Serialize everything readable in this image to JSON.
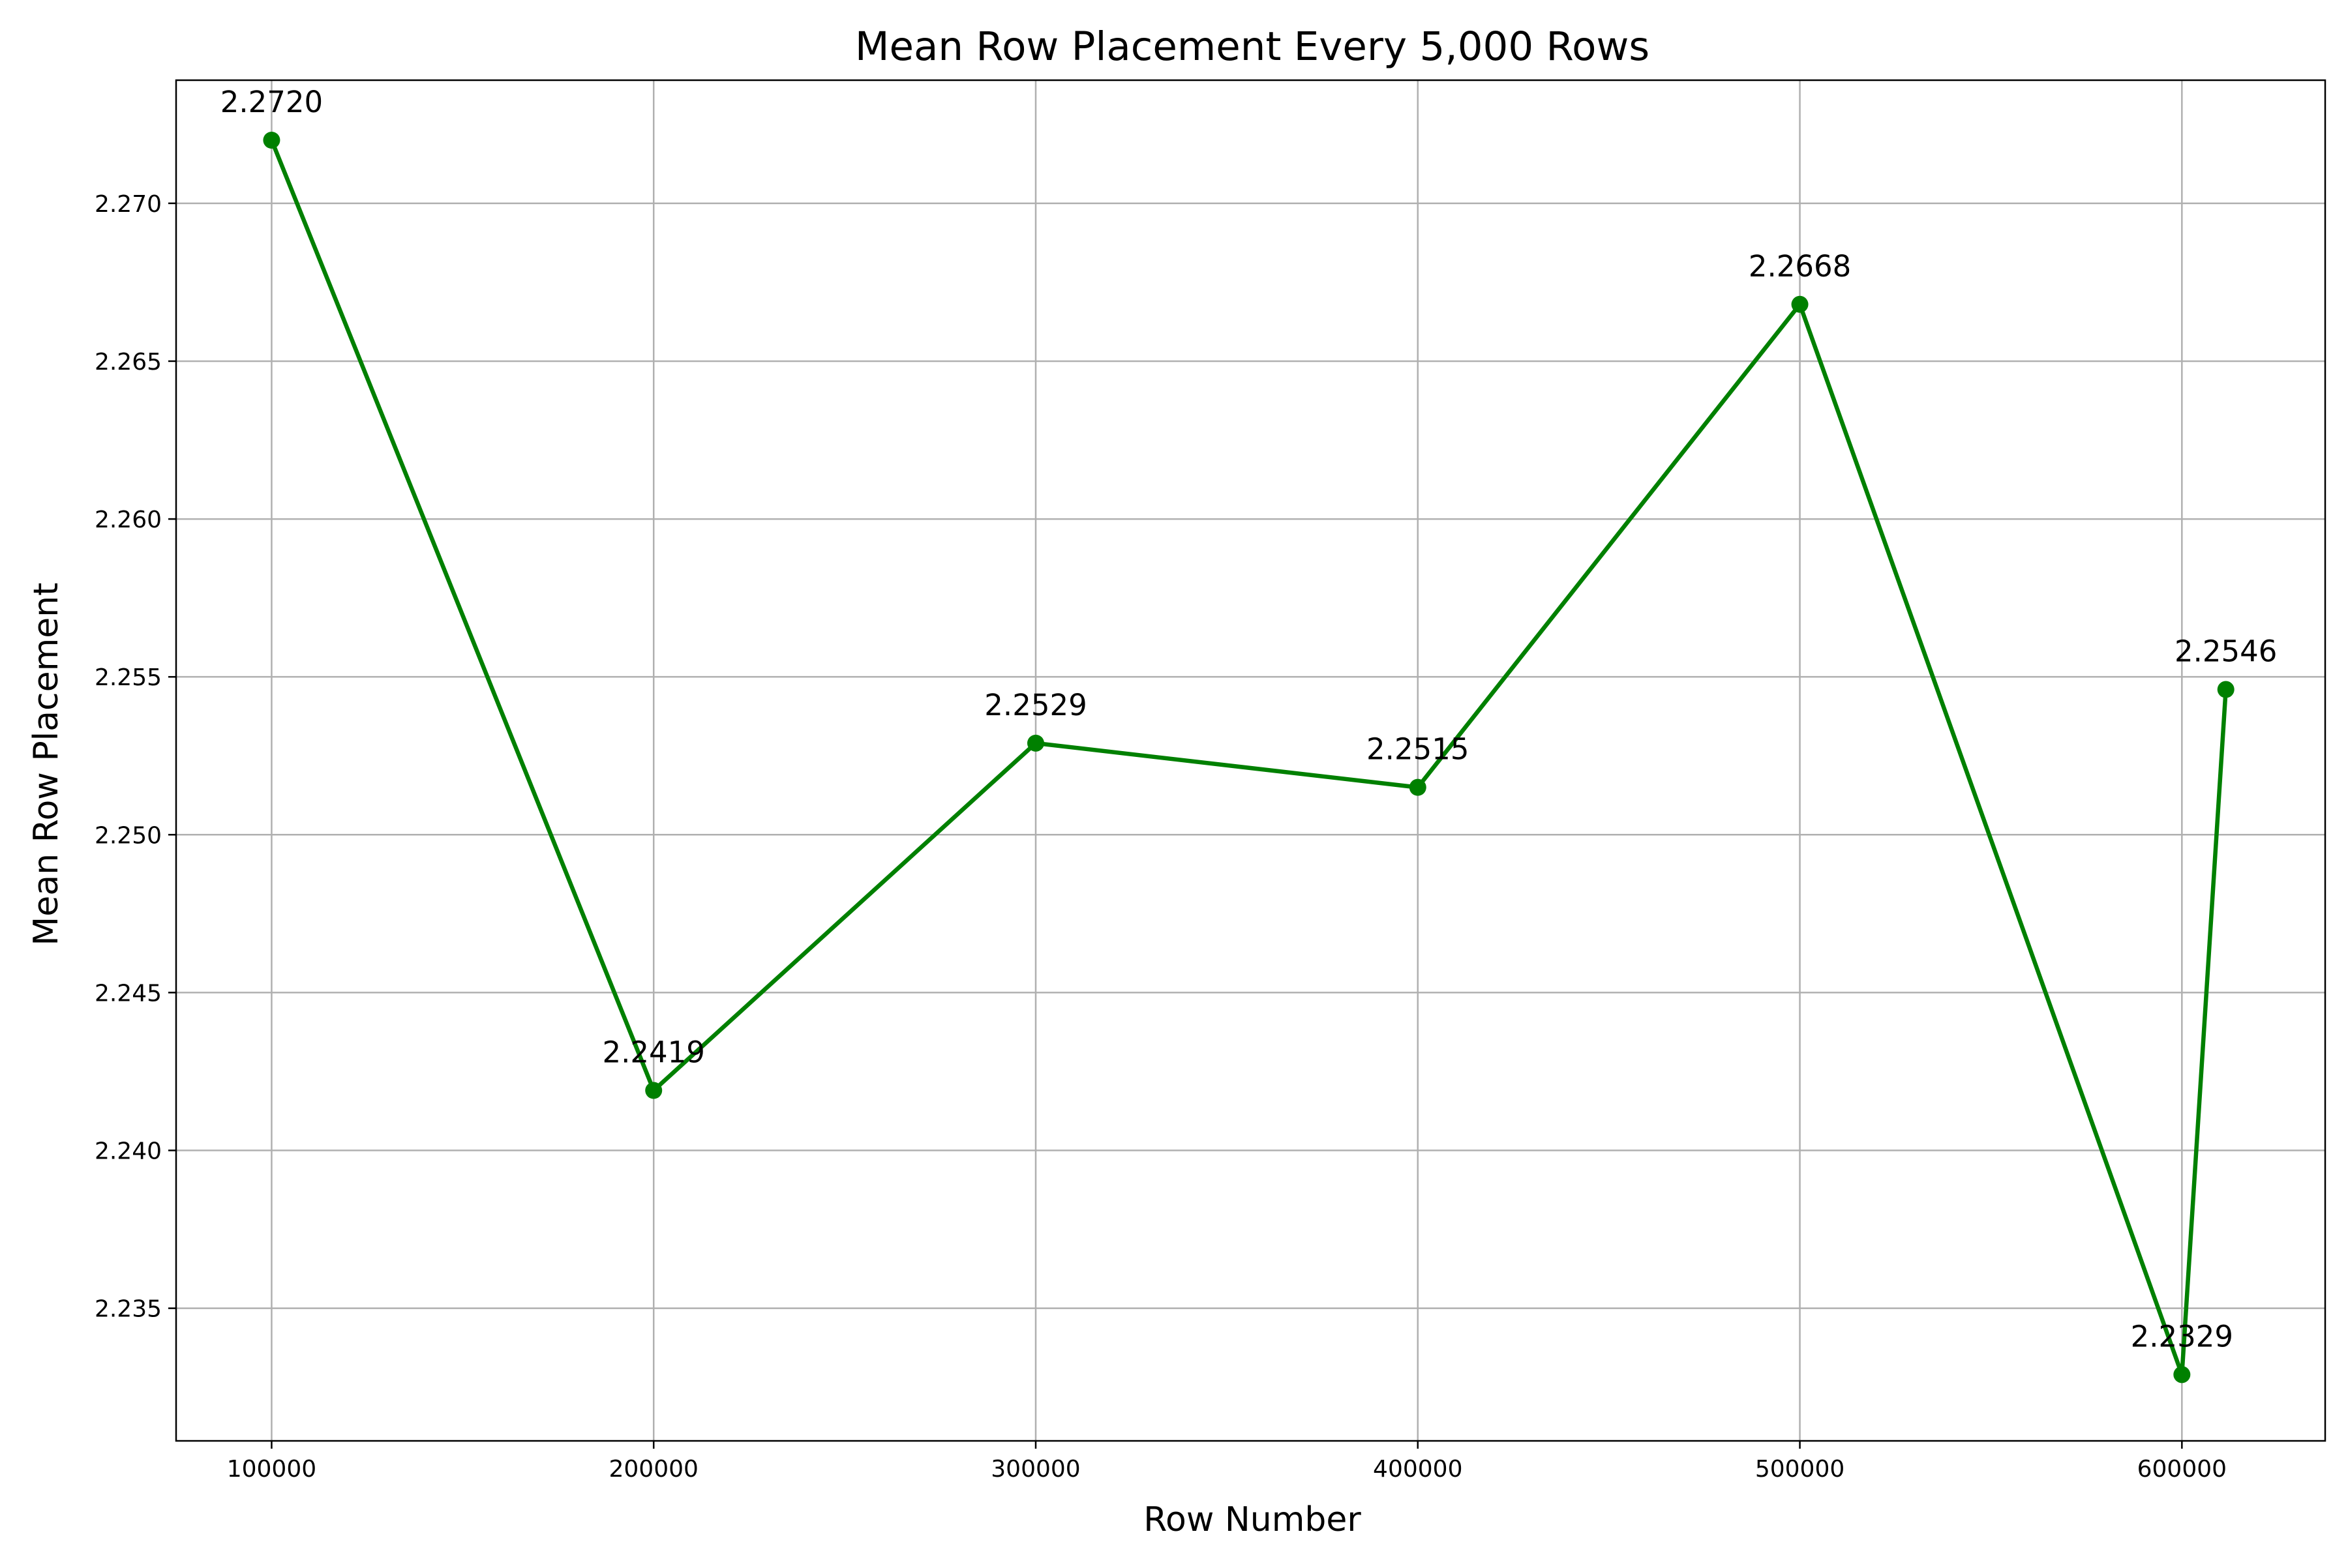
{
  "chart_data": {
    "type": "line",
    "title": "Mean Row Placement Every 5,000 Rows",
    "xlabel": "Row Number",
    "ylabel": "Mean Row Placement",
    "xlim": [
      75000,
      637500
    ],
    "ylim": [
      2.2308,
      2.2739
    ],
    "xticks": [
      100000,
      200000,
      300000,
      400000,
      500000,
      600000
    ],
    "xtick_labels": [
      "100000",
      "200000",
      "300000",
      "400000",
      "500000",
      "600000"
    ],
    "yticks": [
      2.235,
      2.24,
      2.245,
      2.25,
      2.255,
      2.26,
      2.265,
      2.27
    ],
    "ytick_labels": [
      "2.235",
      "2.240",
      "2.245",
      "2.250",
      "2.255",
      "2.260",
      "2.265",
      "2.270"
    ],
    "grid": true,
    "series": [
      {
        "color": "#008000",
        "marker": "circle",
        "x": [
          100000,
          200000,
          300000,
          400000,
          500000,
          600000,
          611500
        ],
        "y": [
          2.272,
          2.2419,
          2.2529,
          2.2515,
          2.2668,
          2.2329,
          2.2546
        ],
        "labels": [
          "2.2720",
          "2.2419",
          "2.2529",
          "2.2515",
          "2.2668",
          "2.2329",
          "2.2546"
        ]
      }
    ]
  }
}
